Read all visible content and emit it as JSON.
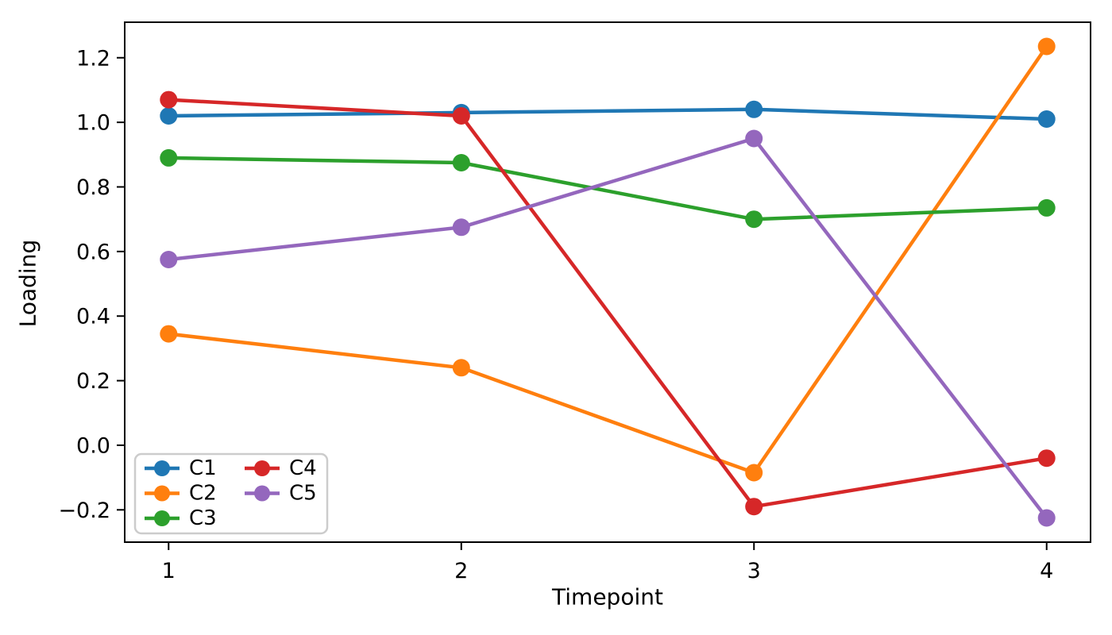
{
  "figure": {
    "background_color": "#ffffff",
    "spine_color": "#000000",
    "legend_border_color": "#cccccc"
  },
  "chart_data": {
    "type": "line",
    "title": "",
    "xlabel": "Timepoint",
    "ylabel": "Loading",
    "x": [
      1,
      2,
      3,
      4
    ],
    "xtick_labels": [
      "1",
      "2",
      "3",
      "4"
    ],
    "ytick_values": [
      -0.2,
      0.0,
      0.2,
      0.4,
      0.6,
      0.8,
      1.0,
      1.2
    ],
    "ytick_labels": [
      "−0.2",
      "0.0",
      "0.2",
      "0.4",
      "0.6",
      "0.8",
      "1.0",
      "1.2"
    ],
    "xlim": [
      0.85,
      4.15
    ],
    "ylim": [
      -0.3,
      1.31
    ],
    "grid": false,
    "marker": "o",
    "legend": {
      "position": "lower left",
      "columns": 2,
      "entries": [
        "C1",
        "C2",
        "C3",
        "C4",
        "C5"
      ]
    },
    "series": [
      {
        "name": "C1",
        "color": "#1f77b4",
        "values": [
          1.02,
          1.03,
          1.04,
          1.01
        ]
      },
      {
        "name": "C2",
        "color": "#ff7f0e",
        "values": [
          0.345,
          0.24,
          -0.085,
          1.235
        ]
      },
      {
        "name": "C3",
        "color": "#2ca02c",
        "values": [
          0.89,
          0.875,
          0.7,
          0.735
        ]
      },
      {
        "name": "C4",
        "color": "#d62728",
        "values": [
          1.07,
          1.02,
          -0.19,
          -0.04
        ]
      },
      {
        "name": "C5",
        "color": "#9467bd",
        "values": [
          0.575,
          0.675,
          0.95,
          -0.225
        ]
      }
    ]
  }
}
